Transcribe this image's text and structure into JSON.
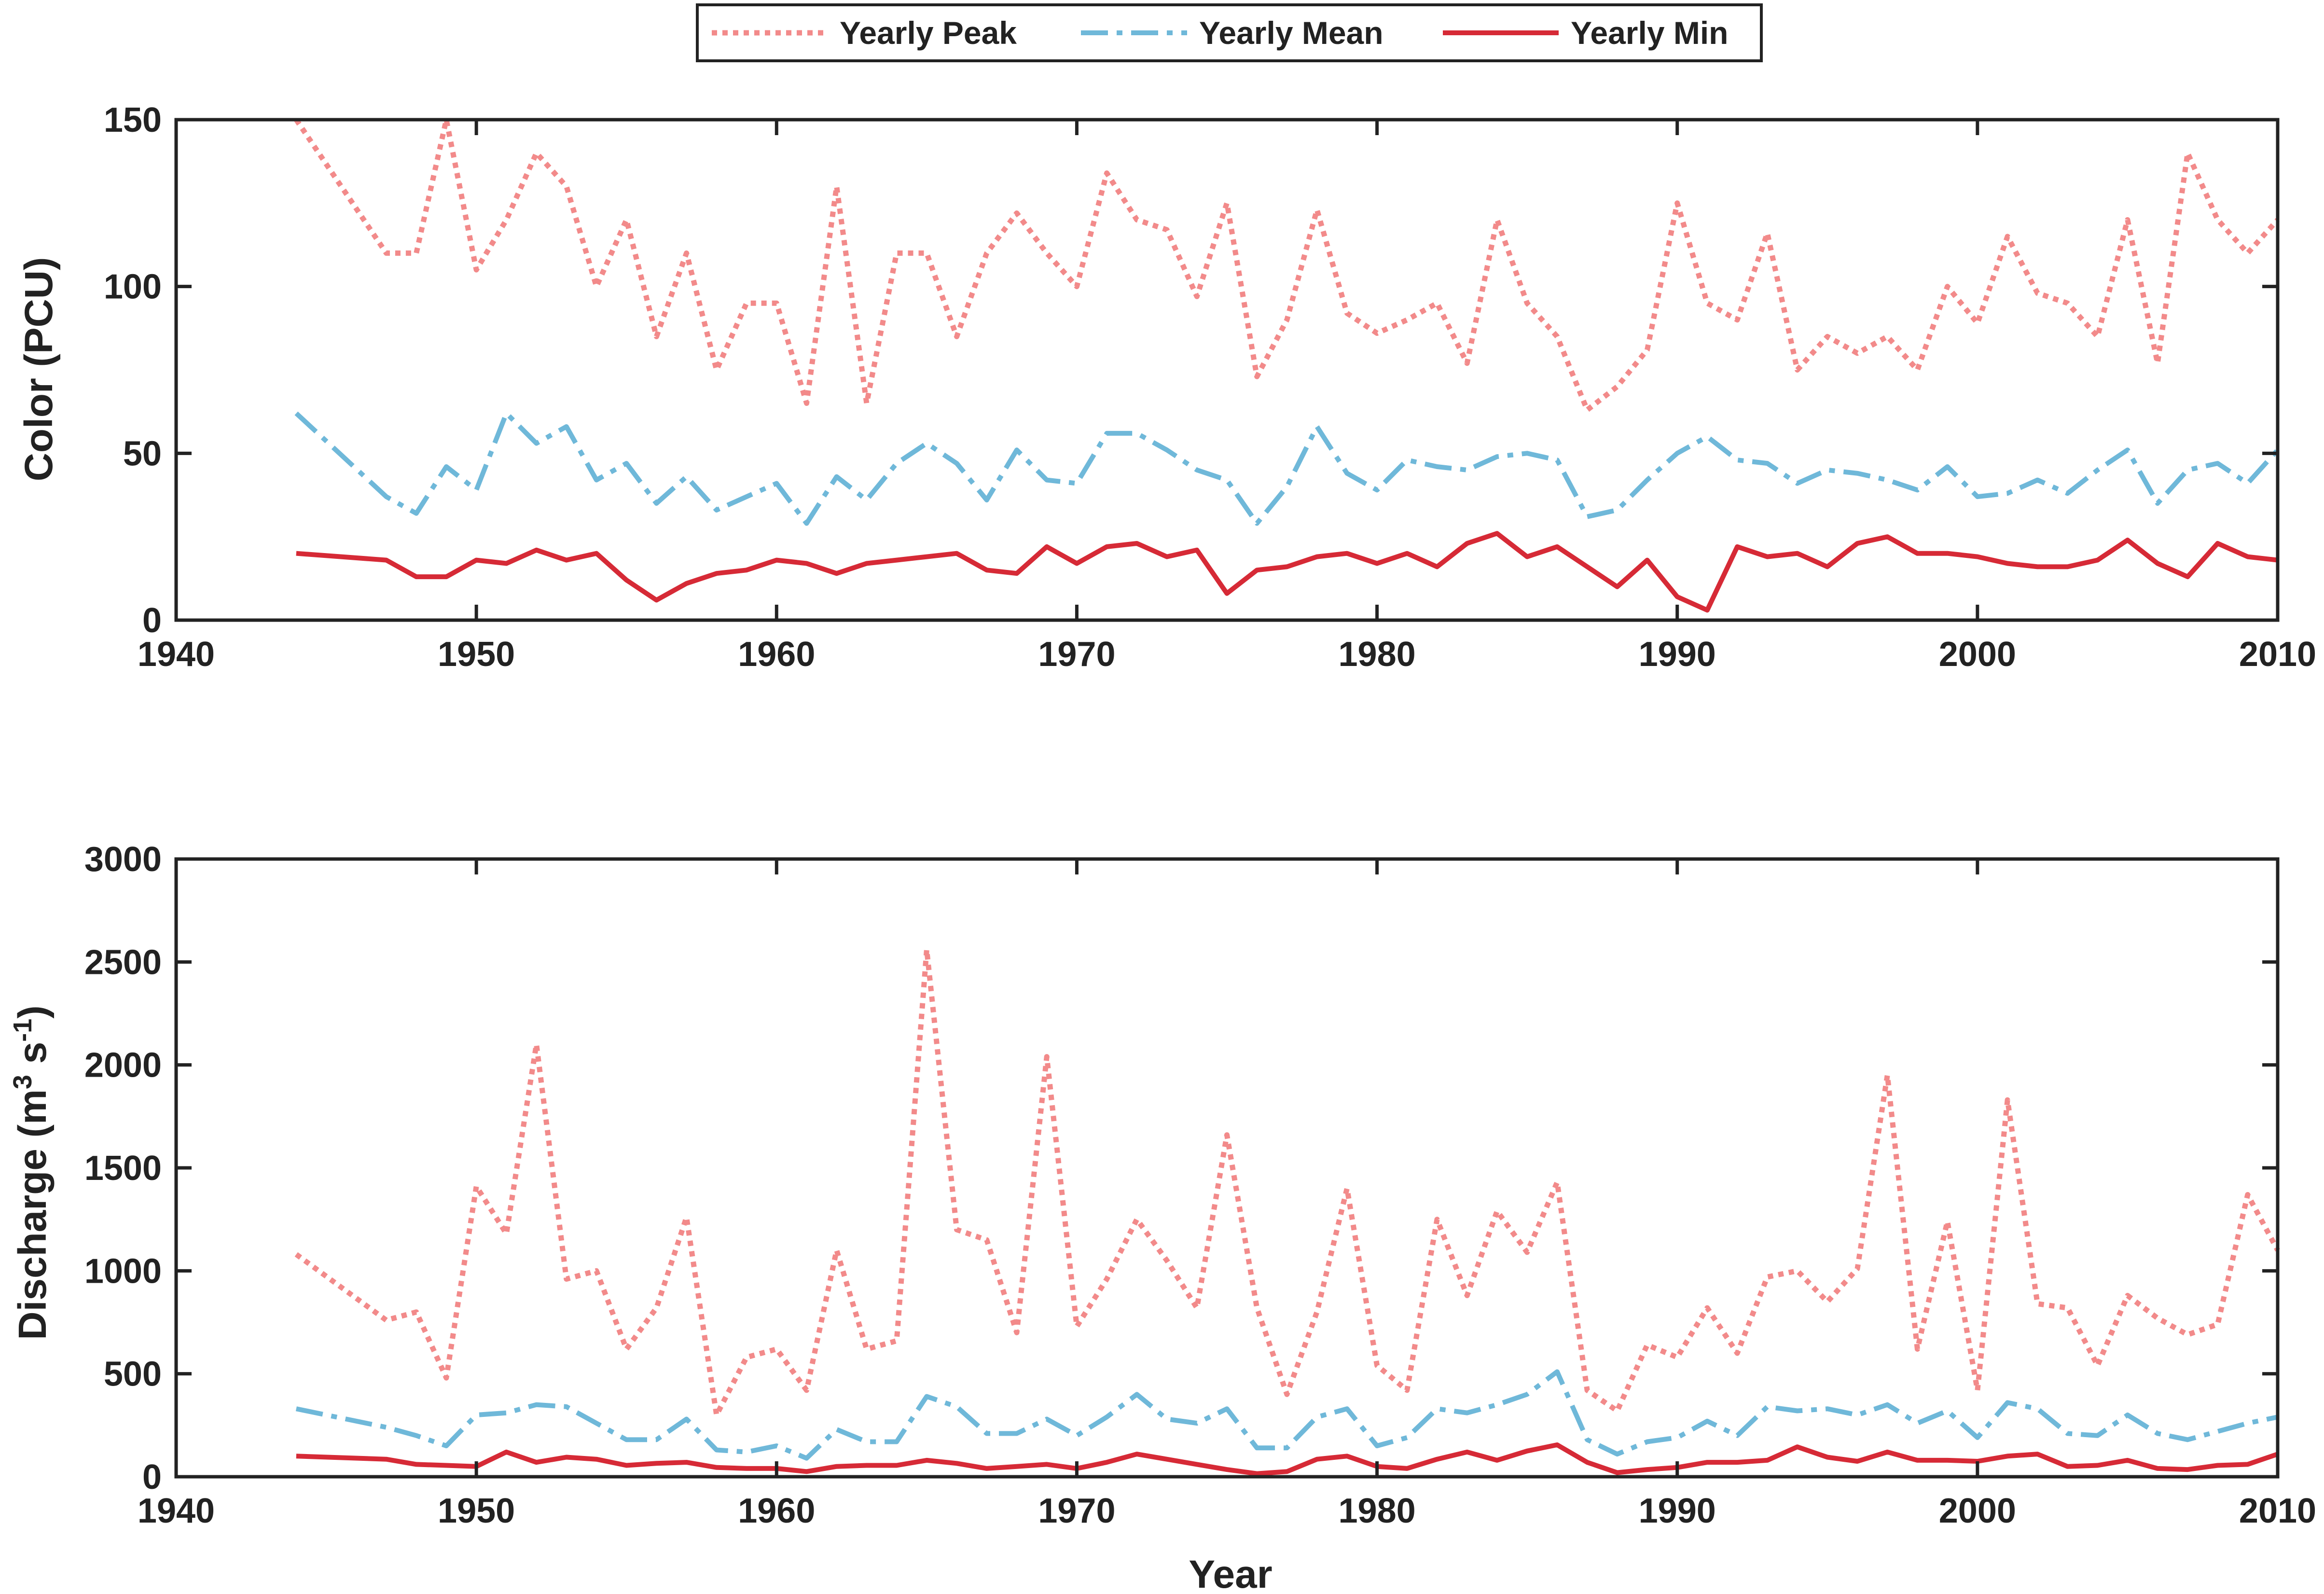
{
  "legend": {
    "entries": [
      {
        "label": "Yearly Peak",
        "color": "#f28a8a",
        "style": "dotted"
      },
      {
        "label": "Yearly Mean",
        "color": "#6fb8d9",
        "style": "dashdot"
      },
      {
        "label": "Yearly Min",
        "color": "#d62a36",
        "style": "solid"
      }
    ]
  },
  "chart_data": [
    {
      "type": "line",
      "ylabel": "Color (PCU)",
      "xlabel": "",
      "xlim": [
        1940,
        2010
      ],
      "ylim": [
        0,
        150
      ],
      "xticks": [
        1940,
        1950,
        1960,
        1970,
        1980,
        1990,
        2000,
        2010
      ],
      "yticks": [
        0,
        50,
        100,
        150
      ],
      "grid": false,
      "x": [
        1944,
        1947,
        1948,
        1949,
        1950,
        1951,
        1952,
        1953,
        1954,
        1955,
        1956,
        1957,
        1958,
        1959,
        1960,
        1961,
        1962,
        1963,
        1964,
        1965,
        1966,
        1967,
        1968,
        1969,
        1970,
        1971,
        1972,
        1973,
        1974,
        1975,
        1976,
        1977,
        1978,
        1979,
        1980,
        1981,
        1982,
        1983,
        1984,
        1985,
        1986,
        1987,
        1988,
        1989,
        1990,
        1991,
        1992,
        1993,
        1994,
        1995,
        1996,
        1997,
        1998,
        1999,
        2000,
        2001,
        2002,
        2003,
        2004,
        2005,
        2006,
        2007,
        2008,
        2009,
        2010
      ],
      "series": [
        {
          "name": "Yearly Peak",
          "values": [
            150,
            110,
            110,
            150,
            105,
            120,
            140,
            130,
            100,
            120,
            85,
            110,
            75,
            95,
            95,
            65,
            130,
            65,
            110,
            110,
            85,
            110,
            122,
            110,
            100,
            134,
            120,
            117,
            97,
            125,
            73,
            90,
            123,
            92,
            86,
            90,
            95,
            77,
            120,
            95,
            85,
            63,
            70,
            81,
            125,
            95,
            90,
            116,
            75,
            85,
            80,
            85,
            75,
            100,
            89,
            115,
            98,
            95,
            85,
            120,
            77,
            140,
            120,
            110,
            120
          ]
        },
        {
          "name": "Yearly Mean",
          "values": [
            62,
            37,
            32,
            46,
            39,
            62,
            53,
            58,
            42,
            47,
            35,
            43,
            33,
            37,
            41,
            29,
            43,
            36,
            47,
            53,
            47,
            36,
            51,
            42,
            41,
            56,
            56,
            51,
            45,
            42,
            29,
            40,
            58,
            44,
            39,
            48,
            46,
            45,
            49,
            50,
            48,
            31,
            33,
            42,
            50,
            55,
            48,
            47,
            41,
            45,
            44,
            42,
            39,
            46,
            37,
            38,
            42,
            38,
            45,
            51,
            35,
            45,
            47,
            41,
            51
          ]
        },
        {
          "name": "Yearly Min",
          "values": [
            20,
            18,
            13,
            13,
            18,
            17,
            21,
            18,
            20,
            12,
            6,
            11,
            14,
            15,
            18,
            17,
            14,
            17,
            18,
            19,
            20,
            15,
            14,
            22,
            17,
            22,
            23,
            19,
            21,
            8,
            15,
            16,
            19,
            20,
            17,
            20,
            16,
            23,
            26,
            19,
            22,
            16,
            10,
            18,
            7,
            3,
            22,
            19,
            20,
            16,
            23,
            25,
            20,
            20,
            19,
            17,
            16,
            16,
            18,
            24,
            17,
            13,
            23,
            19,
            18
          ]
        }
      ]
    },
    {
      "type": "line",
      "ylabel": "Discharge (m",
      "ylabel_sup1": "3",
      "ylabel_mid": " s",
      "ylabel_sup2": "-1",
      "ylabel_end": ")",
      "xlabel": "Year",
      "xlim": [
        1940,
        2010
      ],
      "ylim": [
        0,
        3000
      ],
      "xticks": [
        1940,
        1950,
        1960,
        1970,
        1980,
        1990,
        2000,
        2010
      ],
      "yticks": [
        0,
        500,
        1000,
        1500,
        2000,
        2500,
        3000
      ],
      "grid": false,
      "x": [
        1944,
        1947,
        1948,
        1949,
        1950,
        1951,
        1952,
        1953,
        1954,
        1955,
        1956,
        1957,
        1958,
        1959,
        1960,
        1961,
        1962,
        1963,
        1964,
        1965,
        1966,
        1967,
        1968,
        1969,
        1970,
        1971,
        1972,
        1973,
        1974,
        1975,
        1976,
        1977,
        1978,
        1979,
        1980,
        1981,
        1982,
        1983,
        1984,
        1985,
        1986,
        1987,
        1988,
        1989,
        1990,
        1991,
        1992,
        1993,
        1994,
        1995,
        1996,
        1997,
        1998,
        1999,
        2000,
        2001,
        2002,
        2003,
        2004,
        2005,
        2006,
        2007,
        2008,
        2009,
        2010
      ],
      "series": [
        {
          "name": "Yearly Peak",
          "values": [
            1080,
            760,
            800,
            480,
            1410,
            1180,
            2100,
            960,
            1000,
            620,
            820,
            1260,
            300,
            580,
            620,
            420,
            1100,
            620,
            660,
            2560,
            1200,
            1150,
            700,
            2040,
            730,
            960,
            1250,
            1050,
            820,
            1660,
            820,
            400,
            800,
            1400,
            540,
            420,
            1250,
            880,
            1290,
            1090,
            1430,
            420,
            320,
            640,
            580,
            820,
            600,
            970,
            1000,
            850,
            1010,
            1950,
            620,
            1240,
            420,
            1830,
            840,
            820,
            540,
            880,
            770,
            690,
            740,
            1370,
            1100
          ]
        },
        {
          "name": "Yearly Mean",
          "values": [
            330,
            240,
            200,
            150,
            300,
            310,
            350,
            340,
            260,
            180,
            180,
            280,
            130,
            120,
            150,
            90,
            230,
            170,
            170,
            390,
            340,
            210,
            210,
            280,
            200,
            290,
            400,
            280,
            260,
            330,
            140,
            140,
            290,
            330,
            150,
            190,
            330,
            310,
            350,
            400,
            510,
            180,
            110,
            170,
            190,
            270,
            200,
            340,
            320,
            330,
            300,
            350,
            260,
            320,
            190,
            360,
            330,
            210,
            200,
            300,
            210,
            180,
            220,
            260,
            290
          ]
        },
        {
          "name": "Yearly Min",
          "values": [
            100,
            85,
            60,
            55,
            50,
            120,
            70,
            95,
            85,
            55,
            65,
            70,
            45,
            40,
            40,
            25,
            50,
            55,
            55,
            80,
            65,
            40,
            50,
            60,
            40,
            70,
            110,
            85,
            60,
            35,
            15,
            25,
            85,
            100,
            50,
            40,
            85,
            120,
            80,
            125,
            155,
            70,
            20,
            35,
            45,
            70,
            70,
            80,
            145,
            95,
            75,
            120,
            80,
            80,
            75,
            100,
            110,
            50,
            55,
            80,
            40,
            35,
            55,
            60,
            110
          ]
        }
      ]
    }
  ]
}
